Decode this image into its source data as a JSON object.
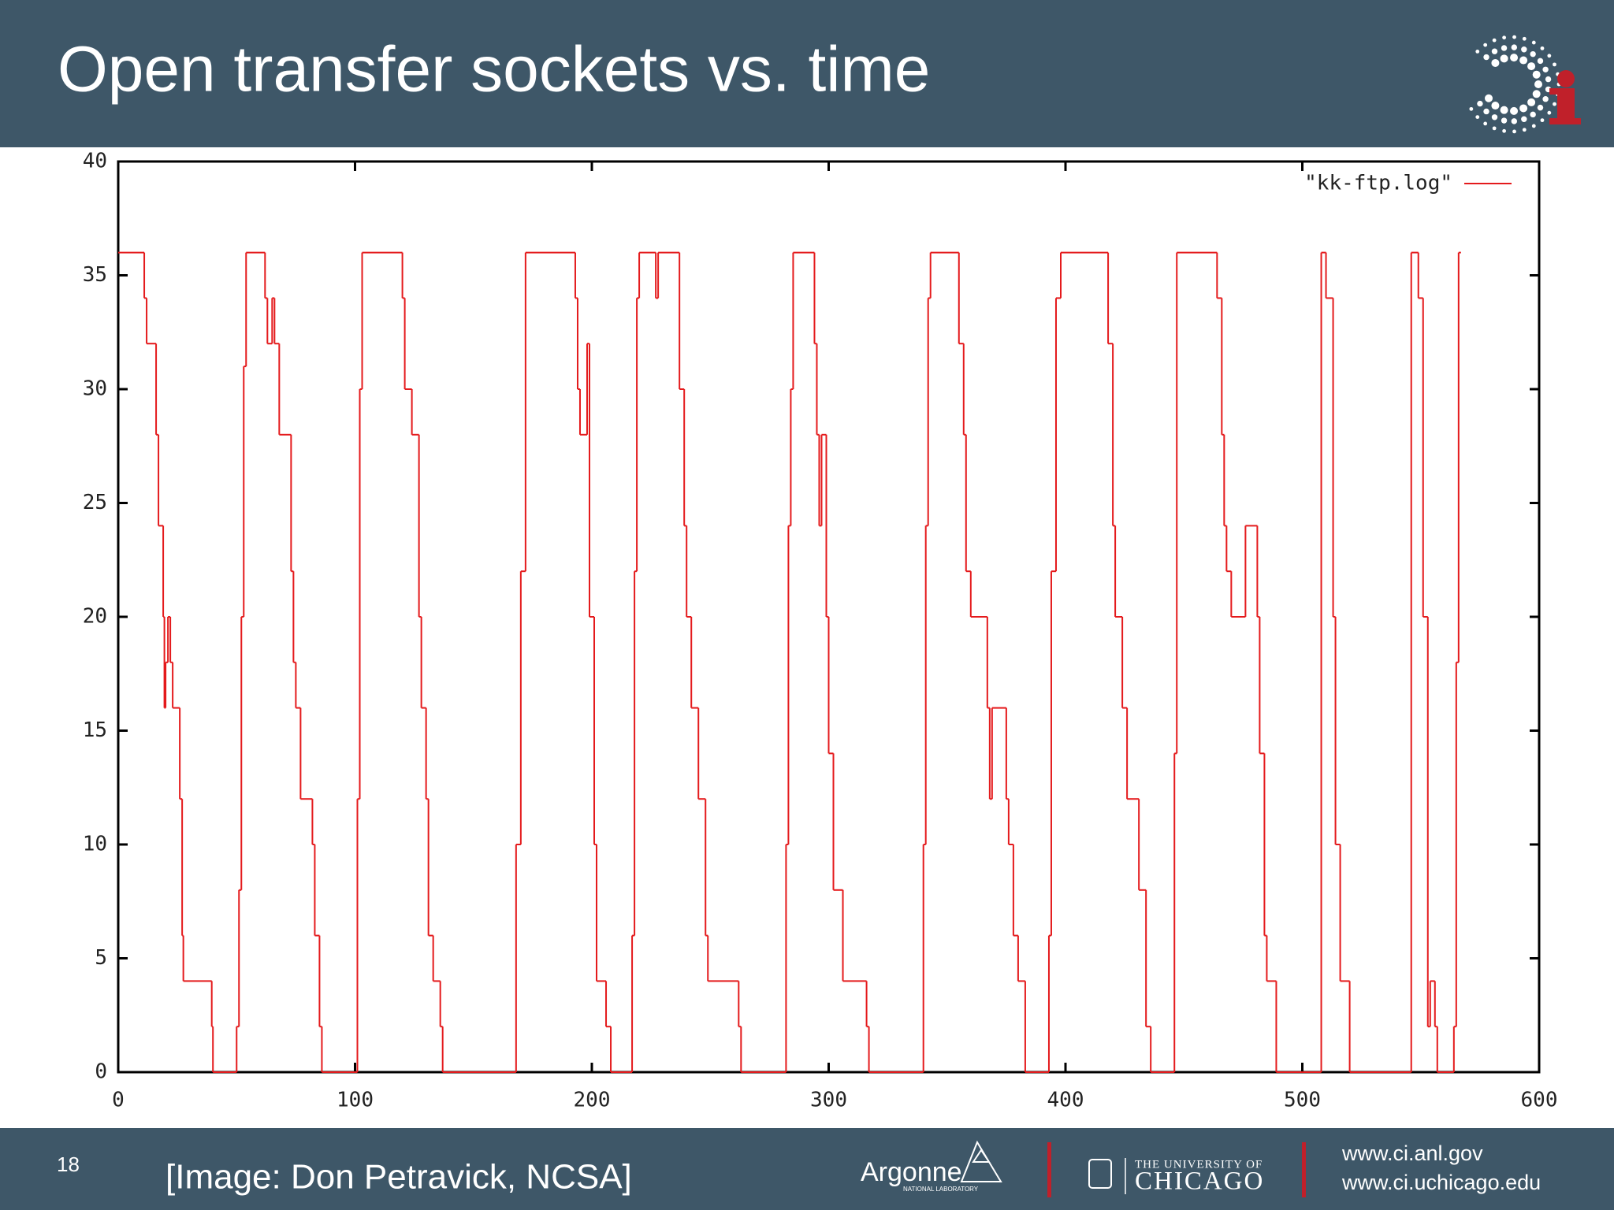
{
  "slide": {
    "title": "Open transfer sockets vs. time",
    "page_number": "18",
    "credit": "[Image: Don Petravick, NCSA]",
    "footer": {
      "argonne": "Argonne",
      "argonne_sub": "NATIONAL LABORATORY",
      "uchicago_top": "THE UNIVERSITY OF",
      "uchicago": "CHICAGO",
      "url1": "www.ci.anl.gov",
      "url2": "www.ci.uchicago.edu"
    }
  },
  "chart_data": {
    "type": "step",
    "series": [
      {
        "name": "\"kk-ftp.log\"",
        "color": "#e41a1c",
        "x": [
          0,
          11,
          12,
          16,
          17,
          19,
          19.5,
          20,
          21,
          22,
          23,
          26,
          27,
          27.5,
          39.5,
          40,
          50,
          51,
          52,
          53,
          54,
          62,
          63,
          65,
          66,
          68,
          73,
          74,
          75,
          77,
          82,
          83,
          85,
          86,
          101,
          102,
          103,
          120,
          121,
          124,
          127,
          128,
          130,
          131,
          133,
          136,
          137,
          168,
          170,
          172,
          193,
          194,
          195,
          198,
          199,
          201,
          202,
          206,
          208,
          217,
          218,
          219,
          220,
          227,
          228,
          237,
          239,
          240,
          242,
          245,
          248,
          249,
          262,
          263,
          282,
          283,
          284,
          285,
          294,
          295,
          296,
          297,
          299,
          300,
          302,
          306,
          316,
          317,
          340,
          341,
          342,
          343,
          355,
          357,
          358,
          360,
          367,
          368,
          369,
          375,
          376,
          378,
          380,
          383,
          393,
          394,
          396,
          398,
          418,
          420,
          421,
          424,
          426,
          431,
          434,
          436,
          446,
          447,
          464,
          466,
          467,
          468,
          470,
          476,
          481,
          482,
          484,
          485,
          489,
          508,
          510,
          513,
          514,
          516,
          520,
          546,
          549,
          551,
          553,
          554,
          556,
          557,
          564,
          565,
          566,
          567
        ],
        "values": [
          36,
          34,
          32,
          28,
          24,
          20,
          16,
          18,
          20,
          18,
          16,
          12,
          6,
          4,
          2,
          0,
          2,
          8,
          20,
          31,
          36,
          34,
          32,
          34,
          32,
          28,
          22,
          18,
          16,
          12,
          10,
          6,
          2,
          0,
          12,
          30,
          36,
          34,
          30,
          28,
          20,
          16,
          12,
          6,
          4,
          2,
          0,
          10,
          22,
          36,
          34,
          30,
          28,
          32,
          20,
          10,
          4,
          2,
          0,
          6,
          22,
          34,
          36,
          34,
          36,
          30,
          24,
          20,
          16,
          12,
          6,
          4,
          2,
          0,
          10,
          24,
          30,
          36,
          32,
          28,
          24,
          28,
          20,
          14,
          8,
          4,
          2,
          0,
          10,
          24,
          34,
          36,
          32,
          28,
          22,
          20,
          16,
          12,
          16,
          12,
          10,
          6,
          4,
          0,
          6,
          22,
          34,
          36,
          32,
          24,
          20,
          16,
          12,
          8,
          2,
          0,
          14,
          36,
          34,
          28,
          24,
          22,
          20,
          24,
          20,
          14,
          6,
          4,
          0,
          36,
          34,
          20,
          10,
          4,
          0,
          36,
          34,
          20,
          2,
          4,
          2,
          0,
          2,
          18,
          36,
          36
        ]
      }
    ],
    "xlim": [
      0,
      600
    ],
    "xticks": [
      0,
      100,
      200,
      300,
      400,
      500,
      600
    ],
    "ylim": [
      0,
      40
    ],
    "yticks": [
      0,
      5,
      10,
      15,
      20,
      25,
      30,
      35,
      40
    ],
    "legend": "upper right"
  }
}
